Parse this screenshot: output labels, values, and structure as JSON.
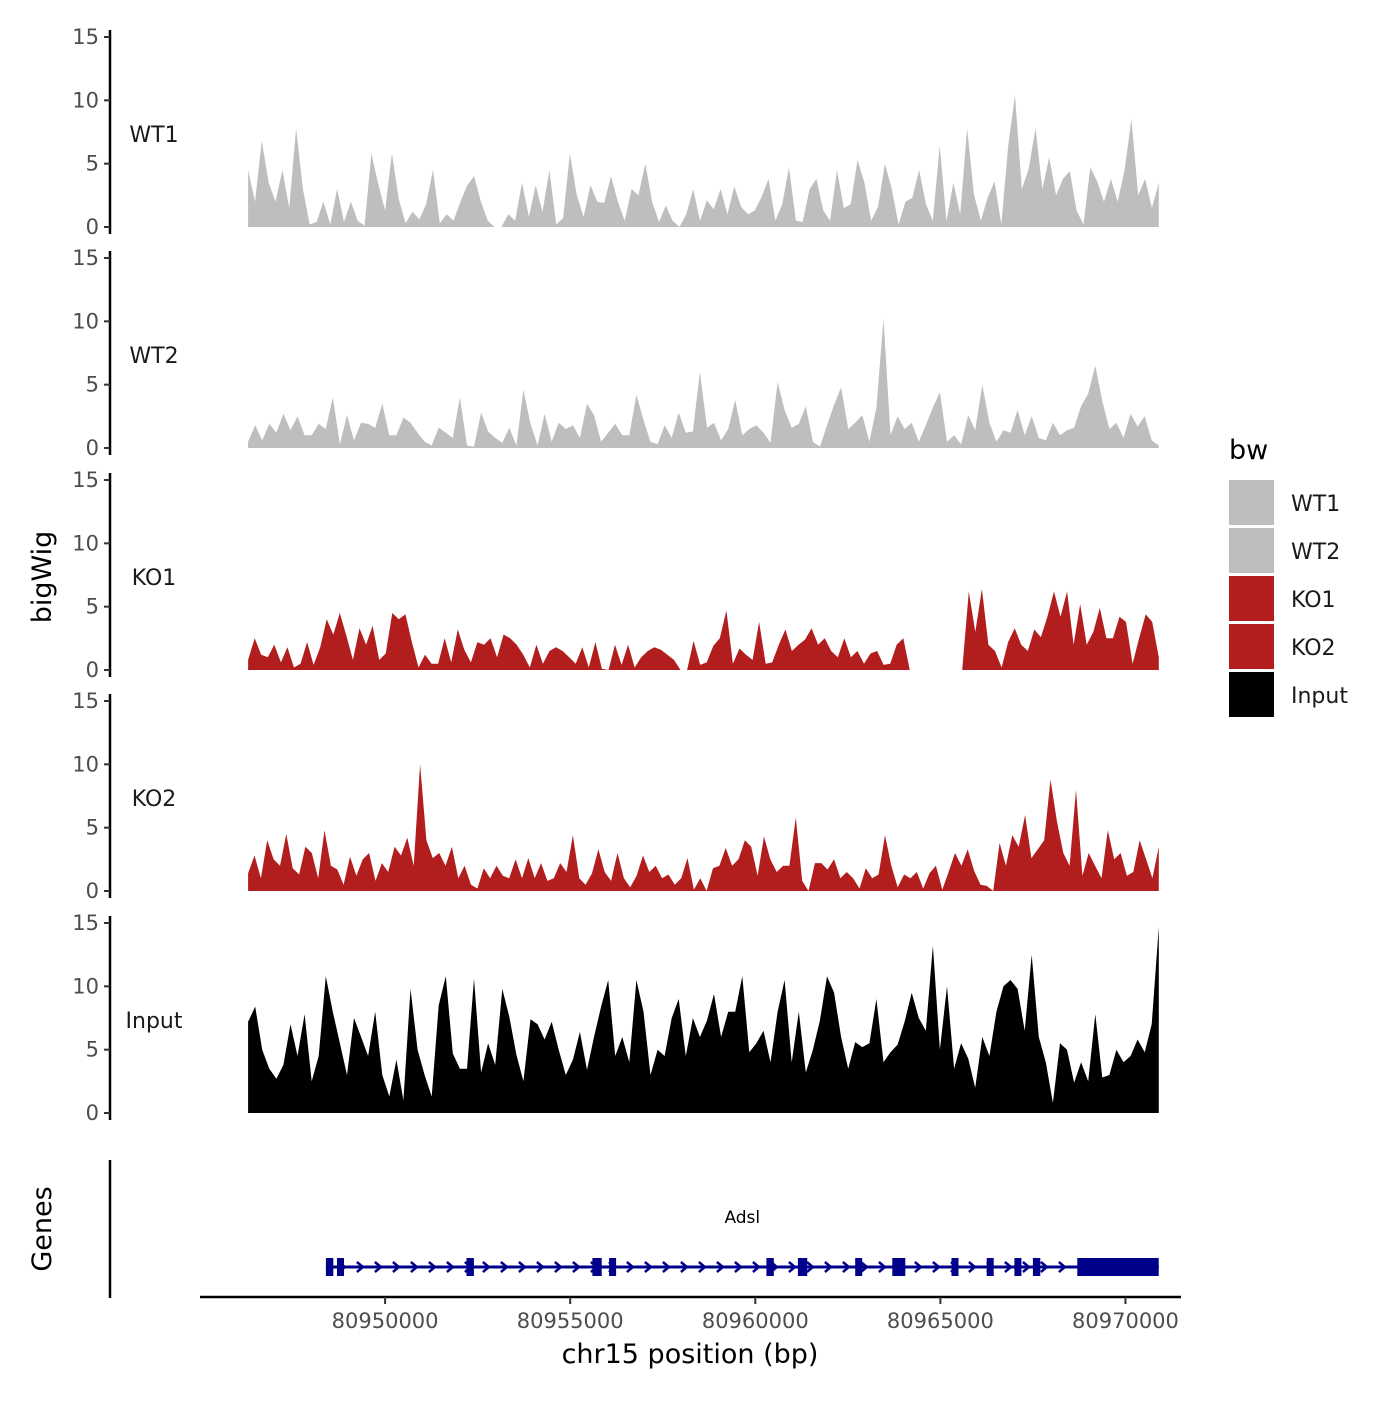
{
  "chart_data": {
    "type": "area",
    "title": "",
    "ylabel": "bigWig",
    "xlabel": "chr15 position (bp)",
    "ylim": [
      0,
      15
    ],
    "y_ticks": [
      0,
      5,
      10,
      15
    ],
    "xlim": [
      80945000,
      80971500
    ],
    "x_ticks": [
      80950000,
      80955000,
      80960000,
      80965000,
      80970000
    ],
    "x_tick_labels": [
      "80950000",
      "80955000",
      "80960000",
      "80965000",
      "80970000"
    ],
    "region": {
      "start": 80946300,
      "end": 80970900
    },
    "legend": {
      "title": "bw",
      "position": "right",
      "entries": [
        {
          "label": "WT1",
          "color": "#bebebe"
        },
        {
          "label": "WT2",
          "color": "#bebebe"
        },
        {
          "label": "KO1",
          "color": "#b21e1e"
        },
        {
          "label": "KO2",
          "color": "#b21e1e"
        },
        {
          "label": "Input",
          "color": "#000000"
        }
      ]
    },
    "series": [
      {
        "name": "WT1",
        "color": "#bebebe",
        "values": [
          4.5,
          2.0,
          6.8,
          3.5,
          2.0,
          4.5,
          1.5,
          7.8,
          3.0,
          0.2,
          0.4,
          2.0,
          0.2,
          3.0,
          0.4,
          2.0,
          0.5,
          0.1,
          5.8,
          3.4,
          1.3,
          5.8,
          2.2,
          0.3,
          1.2,
          0.6,
          1.8,
          4.5,
          0.3,
          1.0,
          0.5,
          2.0,
          3.3,
          4.0,
          2.0,
          0.5,
          0.0,
          0.0,
          1.0,
          0.5,
          3.5,
          0.8,
          3.3,
          1.2,
          4.5,
          0.2,
          0.7,
          5.8,
          2.5,
          0.8,
          3.3,
          2.0,
          1.9,
          4.0,
          2.0,
          0.5,
          3.0,
          2.5,
          5.0,
          2.0,
          0.4,
          1.7,
          0.5,
          0.0,
          1.0,
          3.0,
          0.5,
          2.1,
          1.4,
          3.0,
          1.0,
          3.2,
          1.6,
          1.0,
          1.3,
          2.4,
          3.8,
          0.5,
          1.8,
          4.7,
          0.5,
          0.4,
          3.0,
          3.8,
          1.3,
          0.5,
          4.5,
          1.5,
          1.8,
          5.3,
          3.5,
          0.5,
          1.6,
          5.0,
          3.0,
          0.2,
          2.0,
          2.3,
          4.5,
          1.8,
          0.5,
          6.4,
          0.5,
          3.5,
          1.0,
          7.8,
          2.6,
          0.5,
          2.3,
          3.6,
          0.2,
          6.4,
          10.4,
          3.0,
          4.6,
          7.8,
          3.0,
          5.5,
          2.5,
          3.8,
          4.4,
          1.3,
          0.2,
          4.7,
          3.6,
          2.0,
          3.8,
          2.0,
          4.5,
          8.5,
          2.5,
          3.8,
          1.5,
          3.5
        ]
      },
      {
        "name": "WT2",
        "color": "#bebebe",
        "values": [
          0.5,
          1.8,
          0.6,
          1.9,
          1.2,
          2.7,
          1.4,
          2.5,
          1.0,
          1.0,
          1.9,
          1.5,
          4.0,
          0.3,
          2.6,
          0.6,
          2.0,
          1.9,
          1.6,
          3.5,
          1.0,
          1.0,
          2.4,
          2.0,
          1.2,
          0.5,
          0.2,
          1.6,
          1.2,
          0.8,
          4.0,
          0.2,
          0.1,
          2.8,
          1.3,
          0.8,
          0.4,
          1.6,
          0.2,
          4.6,
          1.9,
          0.2,
          2.7,
          0.5,
          2.0,
          1.5,
          1.8,
          0.8,
          3.5,
          2.6,
          0.5,
          1.2,
          1.9,
          1.0,
          1.0,
          4.2,
          2.2,
          0.5,
          0.3,
          1.8,
          0.8,
          2.8,
          1.2,
          1.3,
          6.0,
          1.6,
          2.0,
          0.6,
          1.5,
          3.8,
          1.0,
          1.5,
          1.8,
          1.2,
          0.4,
          5.2,
          3.0,
          1.6,
          1.9,
          3.3,
          0.5,
          0.1,
          1.8,
          3.4,
          4.8,
          1.5,
          2.0,
          2.6,
          0.5,
          3.2,
          10.2,
          1.0,
          2.5,
          1.5,
          2.0,
          0.5,
          1.8,
          3.2,
          4.4,
          0.5,
          1.0,
          0.3,
          2.6,
          1.4,
          5.0,
          2.0,
          0.5,
          1.4,
          1.2,
          3.0,
          1.0,
          2.5,
          0.8,
          0.6,
          2.0,
          1.0,
          1.4,
          1.6,
          3.3,
          4.3,
          6.5,
          3.7,
          1.5,
          2.0,
          0.8,
          2.7,
          1.7,
          2.5,
          0.6,
          0.2
        ]
      },
      {
        "name": "KO1",
        "color": "#b21e1e",
        "values": [
          0.8,
          2.5,
          1.2,
          1.0,
          2.0,
          0.6,
          1.8,
          0.2,
          0.5,
          2.2,
          0.4,
          1.8,
          4.0,
          2.8,
          4.5,
          2.7,
          0.8,
          3.3,
          2.0,
          3.5,
          0.8,
          1.3,
          4.5,
          4.0,
          4.4,
          2.2,
          0.2,
          1.2,
          0.5,
          0.5,
          2.5,
          0.6,
          3.2,
          1.6,
          0.6,
          2.2,
          2.0,
          2.5,
          1.0,
          2.8,
          2.5,
          2.0,
          1.2,
          0.2,
          2.0,
          0.5,
          1.5,
          1.8,
          1.5,
          1.0,
          0.5,
          1.8,
          0.2,
          2.2,
          0.1,
          0.0,
          2.0,
          0.4,
          2.0,
          0.2,
          1.0,
          1.5,
          1.8,
          1.6,
          1.2,
          0.8,
          0.0,
          0.0,
          2.3,
          0.4,
          0.6,
          1.9,
          2.5,
          4.7,
          0.5,
          1.7,
          1.2,
          0.8,
          3.8,
          0.5,
          0.6,
          2.0,
          3.2,
          1.5,
          2.0,
          2.4,
          3.3,
          2.0,
          2.5,
          1.5,
          1.0,
          2.5,
          1.0,
          1.5,
          0.5,
          1.3,
          1.5,
          0.4,
          0.5,
          2.0,
          2.5,
          0.0,
          0.0,
          0.0,
          0.0,
          0.0,
          0.0,
          0.0,
          0.0,
          0.0,
          6.2,
          3.0,
          6.4,
          2.0,
          1.5,
          0.2,
          2.2,
          3.3,
          2.0,
          1.5,
          3.2,
          2.6,
          4.2,
          6.2,
          4.2,
          6.2,
          2.0,
          5.2,
          2.0,
          3.0,
          4.9,
          2.5,
          2.5,
          4.2,
          3.8,
          0.5,
          2.5,
          4.4,
          3.8,
          1.0
        ]
      },
      {
        "name": "KO2",
        "color": "#b21e1e",
        "values": [
          1.4,
          2.8,
          1.0,
          4.0,
          2.5,
          2.0,
          4.5,
          1.8,
          1.3,
          3.5,
          3.0,
          1.0,
          4.8,
          2.0,
          1.7,
          0.5,
          2.7,
          1.2,
          2.5,
          3.0,
          0.8,
          2.2,
          1.5,
          3.5,
          2.8,
          4.2,
          2.0,
          10.0,
          4.0,
          2.6,
          3.0,
          2.0,
          3.5,
          1.0,
          2.0,
          0.5,
          0.2,
          1.8,
          1.0,
          2.0,
          1.2,
          1.0,
          2.5,
          1.0,
          2.6,
          1.0,
          2.2,
          0.8,
          1.0,
          2.2,
          1.5,
          4.4,
          1.0,
          0.5,
          1.4,
          3.3,
          1.5,
          0.8,
          3.0,
          1.0,
          0.3,
          1.2,
          2.8,
          1.5,
          2.0,
          1.0,
          1.3,
          0.5,
          1.0,
          2.6,
          0.1,
          1.0,
          0.0,
          1.8,
          2.0,
          3.4,
          2.0,
          2.5,
          4.0,
          3.5,
          1.2,
          4.3,
          2.5,
          1.5,
          2.0,
          2.0,
          5.8,
          0.8,
          0.0,
          2.2,
          2.2,
          1.7,
          2.5,
          1.0,
          1.5,
          1.0,
          0.2,
          1.8,
          1.0,
          1.3,
          4.4,
          2.0,
          0.3,
          1.3,
          1.0,
          1.5,
          0.2,
          1.4,
          2.0,
          0.1,
          1.5,
          3.0,
          2.0,
          3.3,
          1.6,
          0.5,
          0.4,
          0.0,
          3.8,
          2.0,
          4.4,
          3.5,
          6.0,
          2.6,
          3.3,
          4.0,
          8.8,
          5.5,
          3.0,
          2.0,
          8.0,
          1.2,
          3.0,
          2.0,
          1.0,
          4.8,
          2.5,
          3.0,
          1.2,
          1.5,
          4.0,
          2.5,
          1.0,
          3.5
        ]
      },
      {
        "name": "Input",
        "color": "#000000",
        "values": [
          7.2,
          8.4,
          5.0,
          3.5,
          2.7,
          3.8,
          7.0,
          4.5,
          7.8,
          2.5,
          4.5,
          10.8,
          8.0,
          5.5,
          3.0,
          7.5,
          6.0,
          4.5,
          8.0,
          3.0,
          1.3,
          4.2,
          1.0,
          9.8,
          5.0,
          3.0,
          1.3,
          8.5,
          10.8,
          4.7,
          3.5,
          3.5,
          10.6,
          3.2,
          5.5,
          3.8,
          9.8,
          7.6,
          4.6,
          2.5,
          7.4,
          7.0,
          5.8,
          7.2,
          5.0,
          3.0,
          4.2,
          6.4,
          3.4,
          6.0,
          8.4,
          10.5,
          4.5,
          6.0,
          4.0,
          10.5,
          8.0,
          3.0,
          5.0,
          4.5,
          7.5,
          9.0,
          4.5,
          7.5,
          6.0,
          7.3,
          9.4,
          6.0,
          8.0,
          8.0,
          10.8,
          4.8,
          5.5,
          6.5,
          4.0,
          8.0,
          10.5,
          4.0,
          8.0,
          3.2,
          5.0,
          7.3,
          10.8,
          9.5,
          6.0,
          3.5,
          5.6,
          5.2,
          5.5,
          9.0,
          4.0,
          4.8,
          5.4,
          7.2,
          9.5,
          7.5,
          6.5,
          13.2,
          5.0,
          10.0,
          3.5,
          5.5,
          4.3,
          2.0,
          6.0,
          4.5,
          8.0,
          10.0,
          10.5,
          9.8,
          6.5,
          12.5,
          6.0,
          4.0,
          0.8,
          5.5,
          5.0,
          2.4,
          4.0,
          2.5,
          7.8,
          2.8,
          3.0,
          5.0,
          4.0,
          4.5,
          5.8,
          4.8,
          7.0,
          14.7
        ]
      }
    ],
    "genes_track": {
      "label": "Genes",
      "gene": "Adsl",
      "strand": "+",
      "start": 80948400,
      "end": 80970900,
      "color": "#00008b",
      "exons": [
        {
          "start": 80948400,
          "end": 80948600
        },
        {
          "start": 80948700,
          "end": 80948850
        },
        {
          "start": 80952200,
          "end": 80952400
        },
        {
          "start": 80955600,
          "end": 80955850
        },
        {
          "start": 80956050,
          "end": 80956150
        },
        {
          "start": 80960300,
          "end": 80960500
        },
        {
          "start": 80961150,
          "end": 80961400
        },
        {
          "start": 80962700,
          "end": 80962800
        },
        {
          "start": 80963700,
          "end": 80964050
        },
        {
          "start": 80965300,
          "end": 80965400
        },
        {
          "start": 80966250,
          "end": 80966350
        },
        {
          "start": 80967000,
          "end": 80967100
        },
        {
          "start": 80967500,
          "end": 80967700
        },
        {
          "start": 80968700,
          "end": 80970900
        }
      ]
    }
  }
}
